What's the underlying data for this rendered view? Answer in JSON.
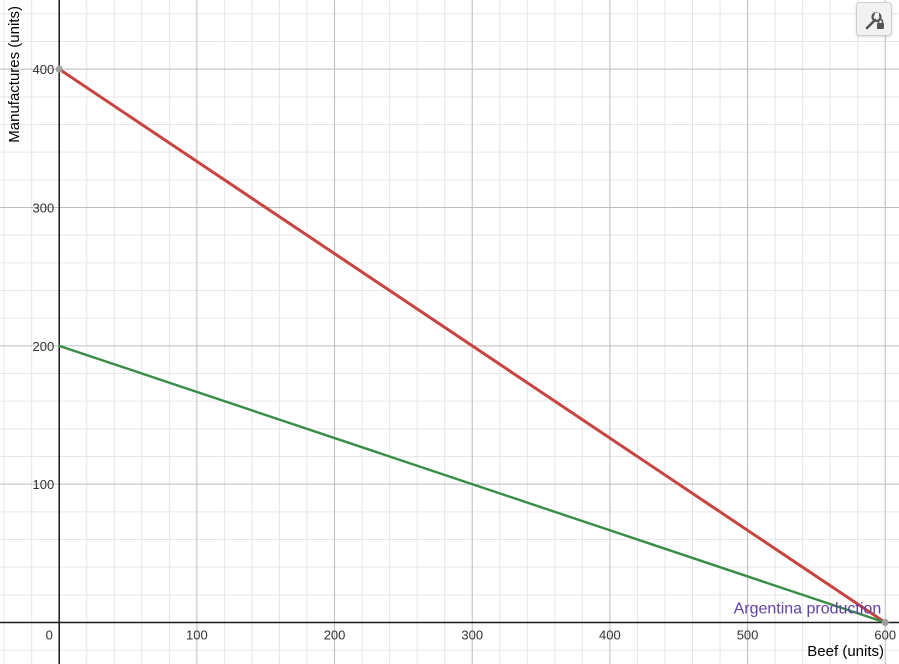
{
  "colors": {
    "background": "#ffffff",
    "grid_minor": "#e6e6e6",
    "grid_major": "#bdbdbd",
    "axis": "#1a1a1a",
    "red_series": "#c74440",
    "green_series": "#388c46",
    "annotation": "#6042a6",
    "point": "#9e9e9e"
  },
  "toolbar": {
    "settings_icon": "wrench-lock-icon"
  },
  "chart_data": {
    "type": "line",
    "xlabel": "Beef (units)",
    "ylabel": "Manufactures (units)",
    "xlim": [
      -43,
      610
    ],
    "ylim": [
      -30,
      450
    ],
    "x_ticks": [
      100,
      200,
      300,
      400,
      500,
      600
    ],
    "y_ticks": [
      100,
      200,
      300,
      400
    ],
    "x_tick_labels": [
      "100",
      "200",
      "300",
      "400",
      "500",
      "600"
    ],
    "y_tick_labels": [
      "100",
      "200",
      "300",
      "400"
    ],
    "origin_label": "0",
    "grid": true,
    "major_step": 100,
    "minor_step": 20,
    "series": [
      {
        "color": "#c74440",
        "points": [
          [
            0,
            400
          ],
          [
            600,
            0
          ]
        ]
      },
      {
        "color": "#388c46",
        "points": [
          [
            0,
            200
          ],
          [
            600,
            0
          ]
        ]
      }
    ],
    "points": [
      {
        "x": 0,
        "y": 400
      },
      {
        "x": 600,
        "y": 0
      }
    ],
    "annotations": [
      {
        "text": "Argentina production",
        "x": 600,
        "y": 0,
        "anchor": "end"
      }
    ]
  }
}
